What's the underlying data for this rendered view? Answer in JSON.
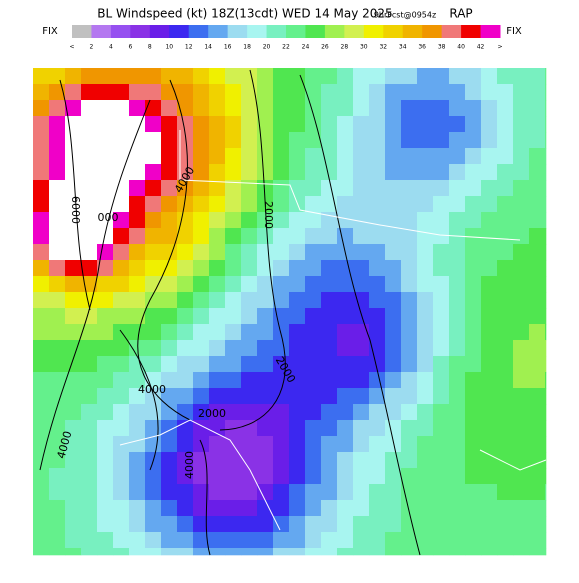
{
  "header": {
    "title": "BL Windspeed (kt) 18Z(13cdt) WED 14 May 2025",
    "forecast": "9hrFcst@0954z",
    "model": "RAP"
  },
  "colorbar": {
    "left_label": "FIX",
    "right_label": "FIX",
    "labels": [
      "<",
      "2",
      "4",
      "6",
      "8",
      "10",
      "12",
      "14",
      "16",
      "18",
      "20",
      "22",
      "24",
      "26",
      "28",
      "30",
      "32",
      "34",
      "36",
      "38",
      "40",
      "42",
      ">"
    ],
    "colors": [
      "#c0c0c0",
      "#b478f0",
      "#9650f0",
      "#8a32e6",
      "#6a1ee8",
      "#3c28f0",
      "#3c6ef0",
      "#64a8f0",
      "#9cdcf0",
      "#a8f5f0",
      "#78f0c0",
      "#64f08c",
      "#50e650",
      "#a0f050",
      "#d2f050",
      "#f0f000",
      "#f0d200",
      "#f0b400",
      "#f09600",
      "#f07878",
      "#f00000",
      "#f000c8"
    ]
  },
  "contour_labels": [
    "6000",
    "4000",
    "000",
    "2000",
    "2000",
    "4000",
    "2000",
    "4000",
    "4000"
  ]
}
